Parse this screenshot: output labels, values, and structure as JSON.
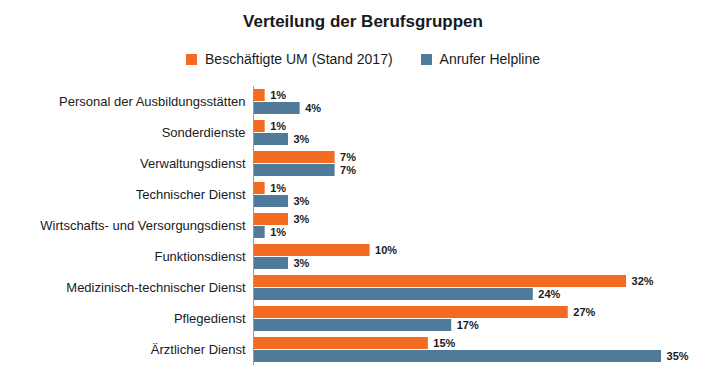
{
  "chart_data": {
    "type": "bar",
    "title": "Verteilung der Berufsgruppen",
    "orientation": "horizontal",
    "categories": [
      "Personal der Ausbildungsstätten",
      "Sonderdienste",
      "Verwaltungsdienst",
      "Technischer Dienst",
      "Wirtschafts- und Versorgungsdienst",
      "Funktionsdienst",
      "Medizinisch-technischer Dienst",
      "Pflegedienst",
      "Ärztlicher Dienst"
    ],
    "series": [
      {
        "name": "Beschäftigte UM (Stand 2017)",
        "color": "#f26b21",
        "values": [
          1,
          1,
          7,
          1,
          3,
          10,
          32,
          27,
          15
        ],
        "value_labels": [
          "1%",
          "1%",
          "7%",
          "1%",
          "3%",
          "10%",
          "32%",
          "27%",
          "15%"
        ]
      },
      {
        "name": "Anrufer Helpline",
        "color": "#4f7a99",
        "values": [
          4,
          3,
          7,
          3,
          1,
          3,
          24,
          17,
          35
        ],
        "value_labels": [
          "4%",
          "3%",
          "7%",
          "3%",
          "1%",
          "3%",
          "24%",
          "17%",
          "35%"
        ]
      }
    ],
    "xlim": [
      0,
      38
    ],
    "data_labels": true,
    "tick_labels": "y",
    "legend": "top"
  }
}
